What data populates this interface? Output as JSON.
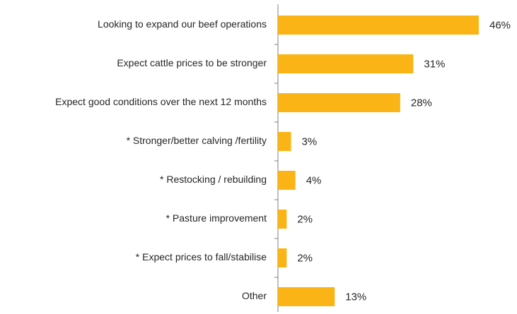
{
  "chart_data": {
    "type": "bar",
    "orientation": "horizontal",
    "categories": [
      "Looking to expand our beef operations",
      "Expect cattle prices to be stronger",
      "Expect good conditions over the next 12 months",
      "* Stronger/better calving /fertility",
      "* Restocking / rebuilding",
      "* Pasture improvement",
      "* Expect prices to fall/stabilise",
      "Other"
    ],
    "values": [
      46,
      31,
      28,
      3,
      4,
      2,
      2,
      13
    ],
    "value_labels": [
      "46%",
      "31%",
      "28%",
      "3%",
      "4%",
      "2%",
      "2%",
      "13%"
    ],
    "color": "#fbb416"
  }
}
